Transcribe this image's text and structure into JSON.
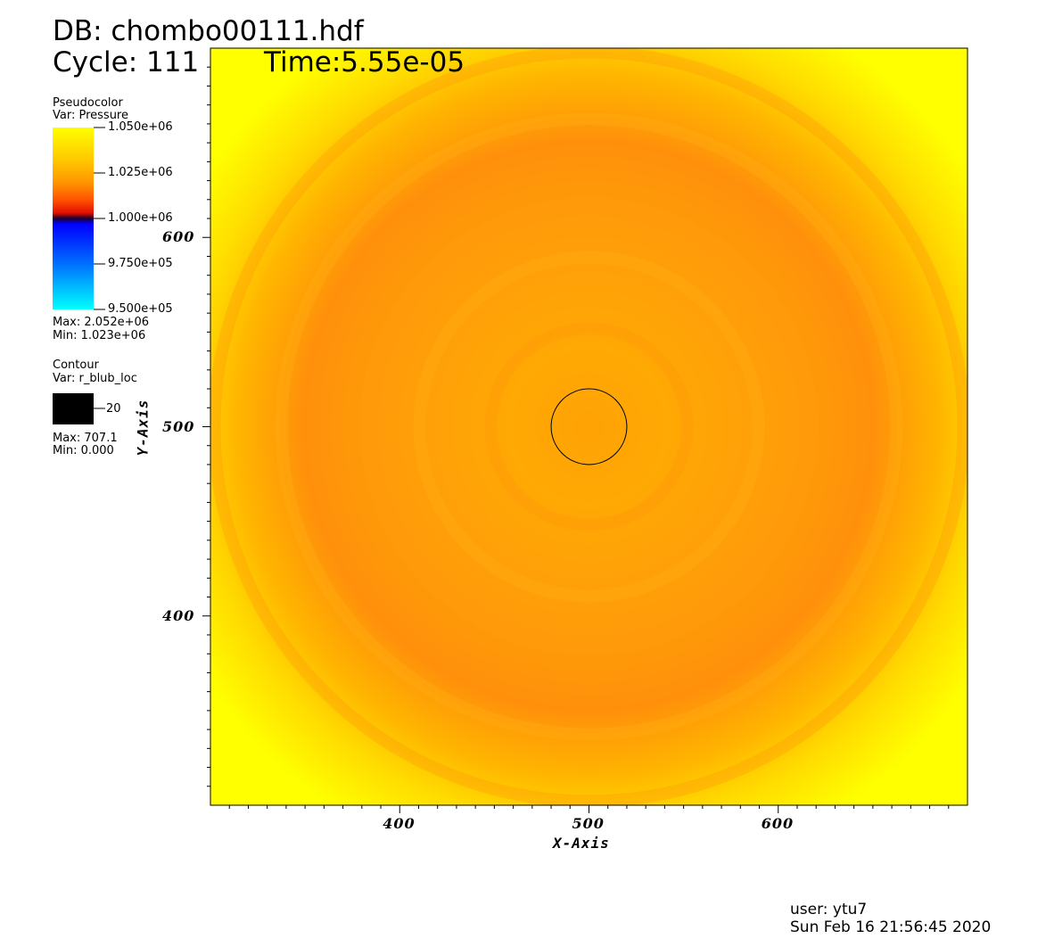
{
  "header": {
    "db": "DB: chombo00111.hdf",
    "cycle": "Cycle: 111",
    "time": "Time:5.55e-05"
  },
  "legend_pseudocolor": {
    "title": "Pseudocolor",
    "var": "Var: Pressure",
    "labels": [
      "1.050e+06",
      "1.025e+06",
      "1.000e+06",
      "9.750e+05",
      "9.500e+05"
    ],
    "max": "Max: 2.052e+06",
    "min": "Min:  1.023e+06"
  },
  "legend_contour": {
    "title": "Contour",
    "var": "Var: r_blub_loc",
    "level": "20",
    "max": "Max: 707.1",
    "min": "Min: 0.000"
  },
  "footer": {
    "user": "user: ytu7",
    "date": "Sun Feb 16 21:56:45 2020"
  },
  "colors": {
    "field_dark": "#ff8c0a",
    "field_mid": "#ffa805",
    "field_light": "#ffff00",
    "contour": "#000000",
    "swatch": "#000000"
  },
  "chart_data": {
    "type": "heatmap",
    "xlabel": "X-Axis",
    "ylabel": "Y-Axis",
    "xlim": [
      300,
      700
    ],
    "ylim": [
      300,
      700
    ],
    "x_ticks": [
      400,
      500,
      600
    ],
    "y_ticks": [
      400,
      500,
      600
    ],
    "x_tick_labels": [
      "400",
      "500",
      "600"
    ],
    "y_tick_labels": [
      "400",
      "500",
      "600"
    ],
    "colorbar_range": [
      950000,
      1050000
    ],
    "contour_circle": {
      "center": [
        500,
        500
      ],
      "radius": 20
    }
  }
}
